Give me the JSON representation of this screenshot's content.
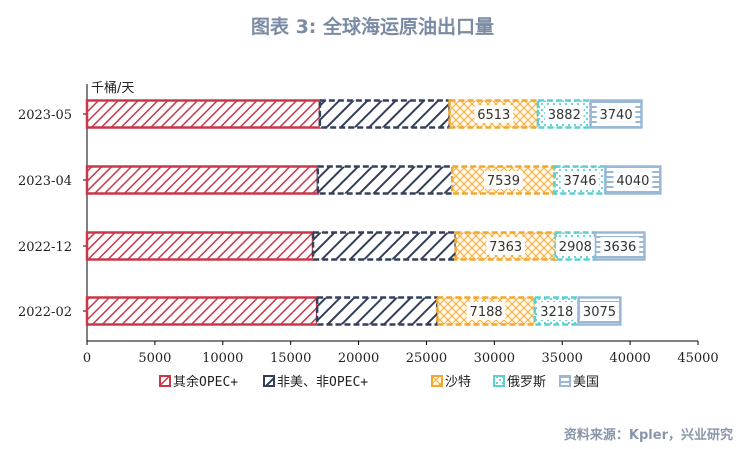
{
  "title": "图表 3:  全球海运原油出口量",
  "source": "资料来源：Kpler，兴业研究",
  "chart_data": {
    "type": "bar",
    "orientation": "horizontal",
    "stacked": true,
    "categories": [
      "2023-05",
      "2023-04",
      "2022-12",
      "2022-02"
    ],
    "unit_label": "千桶/天",
    "xlim": [
      0,
      45000
    ],
    "xticks": [
      0,
      5000,
      10000,
      15000,
      20000,
      25000,
      30000,
      35000,
      40000,
      45000
    ],
    "grid": false,
    "legend_position": "bottom",
    "series": [
      {
        "name": "其余OPEC+",
        "values": [
          17150,
          17000,
          16650,
          16950
        ],
        "labels": [
          "",
          "",
          "",
          ""
        ],
        "color": "#c8384a"
      },
      {
        "name": "非美、非OPEC+",
        "values": [
          9550,
          9900,
          10500,
          8850
        ],
        "labels": [
          "",
          "",
          "",
          ""
        ],
        "color": "#34405a"
      },
      {
        "name": "沙特",
        "values": [
          6513,
          7539,
          7363,
          7188
        ],
        "labels": [
          "6513",
          "7539",
          "7363",
          "7188"
        ],
        "color": "#f0a830"
      },
      {
        "name": "俄罗斯",
        "values": [
          3882,
          3746,
          2908,
          3218
        ],
        "labels": [
          "3882",
          "3746",
          "2908",
          "3218"
        ],
        "color": "#5ccfd0"
      },
      {
        "name": "美国",
        "values": [
          3740,
          4040,
          3636,
          3075
        ],
        "labels": [
          "3740",
          "4040",
          "3636",
          "3075"
        ],
        "color": "#9ab8d6"
      }
    ]
  }
}
